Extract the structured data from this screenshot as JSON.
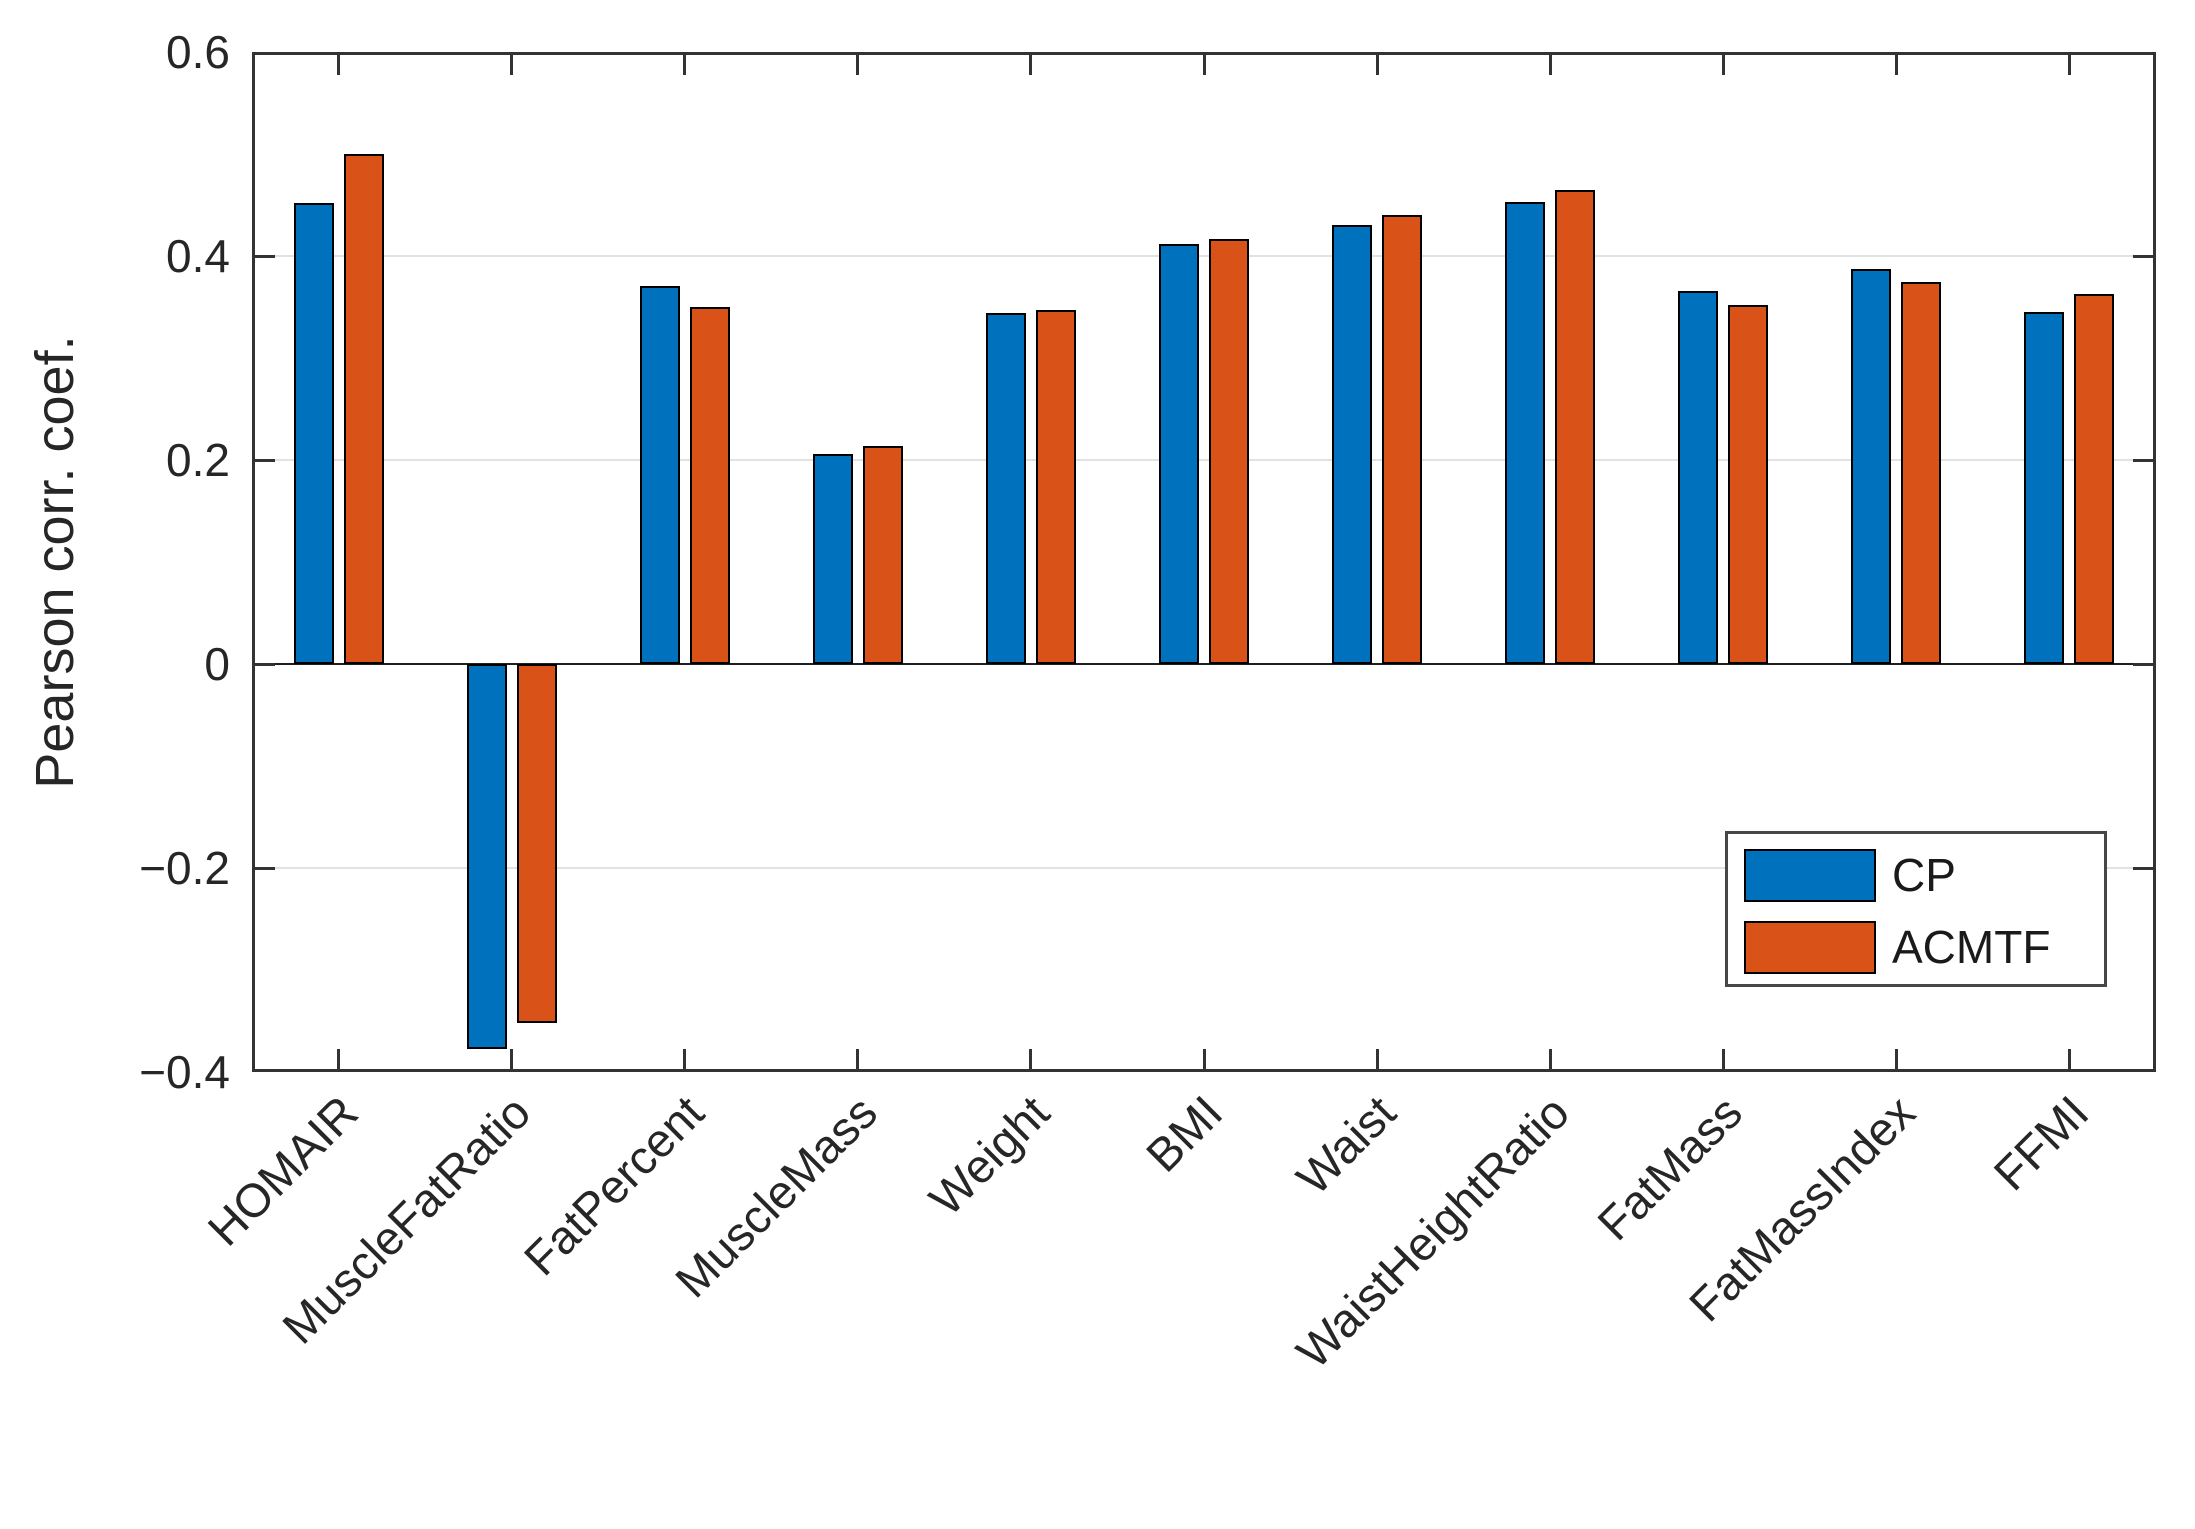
{
  "figure": {
    "background": "#ffffff",
    "axis_color": "#333333",
    "grid_color": "#e2e2e2",
    "text_color": "#262626"
  },
  "chart_data": {
    "type": "bar",
    "title": "",
    "xlabel": "",
    "ylabel": "Pearson corr. coef.",
    "categories": [
      "HOMAIR",
      "MuscleFatRatio",
      "FatPercent",
      "MuscleMass",
      "Weight",
      "BMI",
      "Waist",
      "WaistHeightRatio",
      "FatMass",
      "FatMassIndex",
      "FFMI"
    ],
    "series": [
      {
        "name": "CP",
        "color": "#0072BD",
        "values": [
          0.452,
          -0.377,
          0.371,
          0.206,
          0.344,
          0.412,
          0.43,
          0.453,
          0.366,
          0.387,
          0.345
        ]
      },
      {
        "name": "ACMTF",
        "color": "#D95319",
        "values": [
          0.5,
          -0.352,
          0.35,
          0.214,
          0.347,
          0.417,
          0.44,
          0.465,
          0.352,
          0.375,
          0.363
        ]
      }
    ],
    "ylim": [
      -0.4,
      0.6
    ],
    "yticks": [
      0.6,
      0.4,
      0.2,
      0,
      -0.2,
      -0.4
    ],
    "ytick_labels": [
      "0.6",
      "0.4",
      "0.2",
      "0",
      "−0.2",
      "−0.4"
    ],
    "bar_edge_color": "#000000",
    "grid": "horizontal",
    "x_label_rotation": 45,
    "legend_position": "lower right",
    "legend_entries": [
      "CP",
      "ACMTF"
    ]
  }
}
